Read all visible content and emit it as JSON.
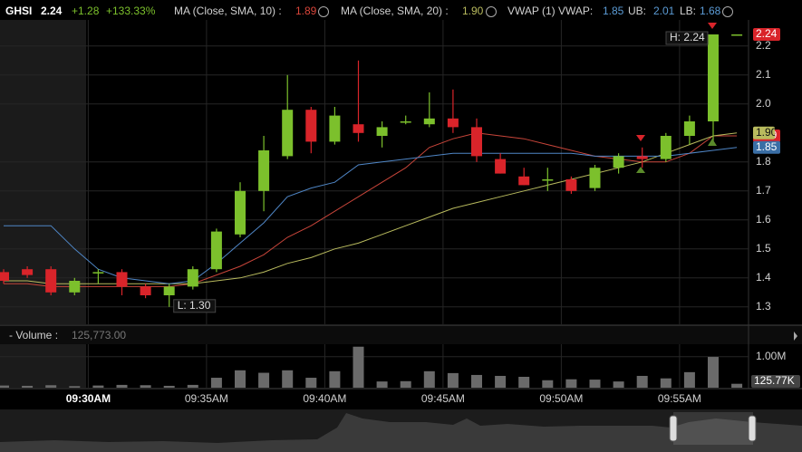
{
  "header": {
    "symbol": "GHSI",
    "last": 2.24,
    "change": "+1.28",
    "change_pct": "+133.33%"
  },
  "chart_data": [
    {
      "type": "candlestick",
      "categories": [
        null,
        null,
        null,
        null,
        "09:30AM",
        null,
        null,
        null,
        null,
        "09:35AM",
        null,
        null,
        null,
        null,
        "09:40AM",
        null,
        null,
        null,
        null,
        "09:45AM",
        null,
        null,
        null,
        null,
        "09:50AM",
        null,
        null,
        null,
        null,
        "09:55AM",
        null,
        null
      ],
      "open": [
        1.42,
        1.43,
        1.43,
        1.35,
        1.42,
        1.42,
        1.37,
        1.34,
        1.37,
        1.43,
        1.55,
        1.7,
        1.82,
        1.98,
        1.87,
        1.93,
        1.89,
        1.94,
        1.93,
        1.95,
        1.92,
        1.81,
        1.75,
        1.74,
        1.74,
        1.71,
        1.78,
        1.82,
        1.81,
        1.89,
        1.94,
        2.24
      ],
      "high": [
        1.43,
        1.44,
        1.44,
        1.4,
        1.43,
        1.43,
        1.38,
        1.38,
        1.44,
        1.57,
        1.73,
        1.89,
        2.1,
        1.99,
        1.99,
        2.15,
        1.94,
        1.96,
        2.04,
        2.05,
        1.95,
        1.83,
        1.78,
        1.78,
        1.75,
        1.79,
        1.83,
        1.85,
        1.9,
        1.96,
        2.24,
        2.24
      ],
      "low": [
        1.38,
        1.4,
        1.34,
        1.34,
        1.38,
        1.34,
        1.33,
        1.3,
        1.36,
        1.42,
        1.54,
        1.63,
        1.81,
        1.83,
        1.86,
        1.87,
        1.85,
        1.93,
        1.92,
        1.9,
        1.8,
        1.76,
        1.72,
        1.7,
        1.69,
        1.7,
        1.76,
        1.78,
        1.8,
        1.86,
        1.87,
        2.24
      ],
      "close": [
        1.39,
        1.41,
        1.35,
        1.39,
        1.42,
        1.37,
        1.34,
        1.37,
        1.43,
        1.56,
        1.7,
        1.84,
        1.98,
        1.87,
        1.96,
        1.9,
        1.92,
        1.94,
        1.95,
        1.92,
        1.82,
        1.76,
        1.72,
        1.74,
        1.7,
        1.78,
        1.82,
        1.81,
        1.89,
        1.94,
        2.24,
        2.24
      ],
      "up_color": "#7cc02c",
      "down_color": "#d9242a",
      "series": [
        {
          "name": "MA (Close, SMA, 10) :",
          "current": "1.89",
          "color": "#c8453a",
          "values": [
            1.38,
            1.38,
            1.37,
            1.37,
            1.37,
            1.37,
            1.37,
            1.37,
            1.38,
            1.41,
            1.44,
            1.48,
            1.54,
            1.58,
            1.63,
            1.68,
            1.73,
            1.78,
            1.85,
            1.88,
            1.9,
            1.89,
            1.88,
            1.86,
            1.84,
            1.82,
            1.81,
            1.8,
            1.8,
            1.83,
            1.89,
            1.89
          ]
        },
        {
          "name": "MA (Close, SMA, 20) :",
          "current": "1.90",
          "color": "#b9bb5e",
          "values": [
            1.39,
            1.39,
            1.38,
            1.38,
            1.38,
            1.38,
            1.38,
            1.38,
            1.38,
            1.39,
            1.4,
            1.42,
            1.45,
            1.47,
            1.5,
            1.52,
            1.55,
            1.58,
            1.61,
            1.64,
            1.66,
            1.68,
            1.7,
            1.72,
            1.74,
            1.76,
            1.78,
            1.8,
            1.83,
            1.86,
            1.89,
            1.9
          ]
        },
        {
          "name": "VWAP (1) VWAP:",
          "current": "1.85",
          "color": "#4f86c6",
          "values": [
            1.58,
            1.58,
            1.58,
            1.5,
            1.43,
            1.4,
            1.39,
            1.38,
            1.39,
            1.45,
            1.52,
            1.59,
            1.68,
            1.71,
            1.73,
            1.79,
            1.8,
            1.81,
            1.82,
            1.83,
            1.83,
            1.83,
            1.83,
            1.83,
            1.83,
            1.82,
            1.82,
            1.82,
            1.82,
            1.83,
            1.84,
            1.85
          ],
          "bands": [
            {
              "label": "UB:",
              "value": "2.01"
            },
            {
              "label": "LB:",
              "value": "1.68"
            }
          ]
        }
      ],
      "annotations": [
        "H: 2.24",
        "L: 1.30"
      ],
      "ylim": [
        1.24,
        2.29
      ],
      "yticks": [
        1.3,
        1.4,
        1.5,
        1.6,
        1.7,
        1.8,
        {
          "value": 2,
          "label": "2.0"
        },
        2.1,
        2.2
      ],
      "grid": true
    },
    {
      "type": "bar",
      "title": "- Volume :",
      "current": {
        "value": "125,773.00",
        "label": "125.77K"
      },
      "color": "#6a6a6a",
      "values": [
        70000,
        60000,
        80000,
        50000,
        70000,
        90000,
        80000,
        60000,
        90000,
        320000,
        560000,
        480000,
        560000,
        320000,
        530000,
        1320000,
        200000,
        210000,
        530000,
        470000,
        410000,
        380000,
        350000,
        240000,
        270000,
        260000,
        200000,
        380000,
        300000,
        500000,
        990000,
        125773
      ],
      "ylim": [
        0,
        1400000
      ],
      "yticks": [
        {
          "value": 1000000,
          "label": "1.00M"
        }
      ]
    }
  ]
}
